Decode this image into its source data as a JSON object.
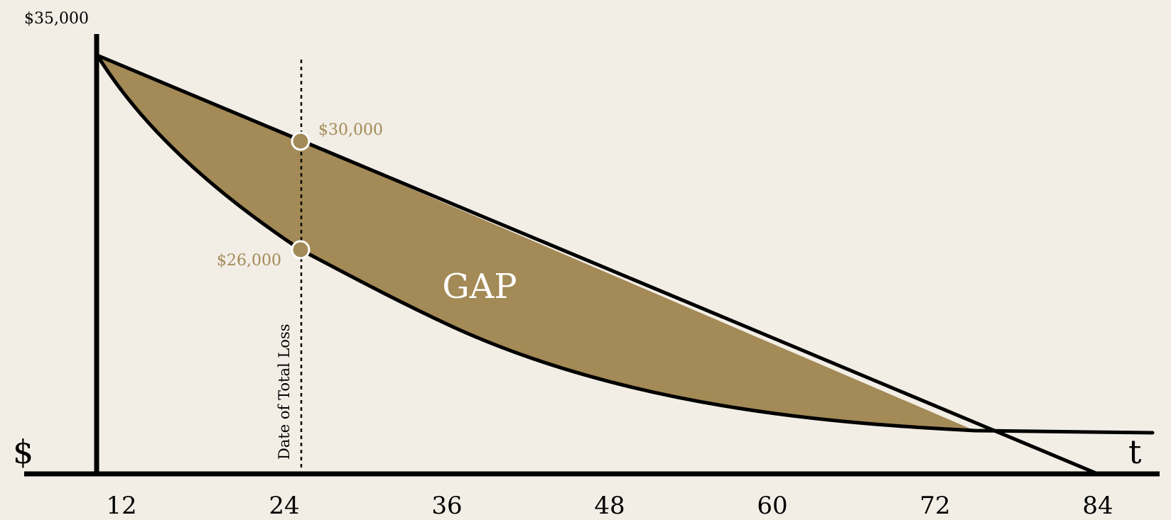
{
  "colors": {
    "background": "#f2eee6",
    "gap_fill": "#a38a56",
    "line": "#000000",
    "label_gold": "#a38a56",
    "gap_text": "#ffffff"
  },
  "diagram": {
    "top_value_label": "$35,000",
    "y_axis_symbol": "$",
    "x_axis_symbol": "t",
    "gap_label": "GAP",
    "loss_date_label": "Date of Total Loss",
    "upper_point_label": "$30,000",
    "lower_point_label": "$26,000",
    "x_ticks": [
      "12",
      "24",
      "36",
      "48",
      "60",
      "72",
      "84"
    ]
  }
}
